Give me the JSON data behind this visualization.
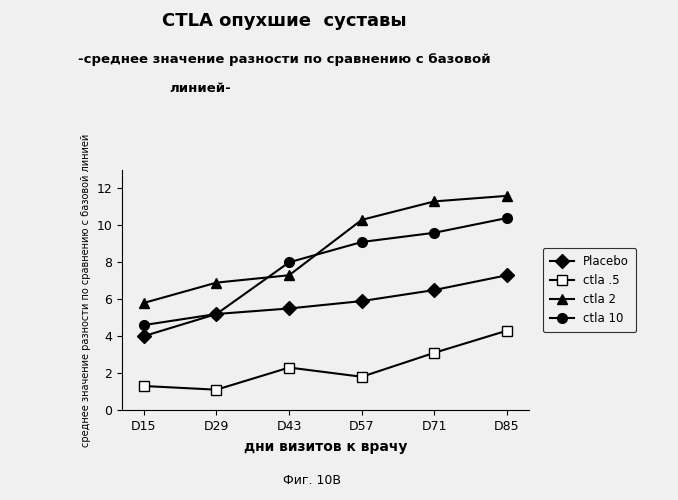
{
  "title": "CTLA опухшие  суставы",
  "subtitle1": "-среднее значение разности по сравнению с базовой",
  "subtitle2": "линией-",
  "xlabel": "дни визитов к врачу",
  "ylabel": "среднее значение разности по сравнению с базовой линией",
  "caption": "Фиг. 10В",
  "x_labels": [
    "D15",
    "D29",
    "D43",
    "D57",
    "D71",
    "D85"
  ],
  "x_values": [
    0,
    1,
    2,
    3,
    4,
    5
  ],
  "series_order": [
    "Placebo",
    "ctla .5",
    "ctla 2",
    "ctla 10"
  ],
  "series": {
    "Placebo": {
      "values": [
        4.0,
        5.2,
        5.5,
        5.9,
        6.5,
        7.3
      ],
      "marker": "D",
      "linestyle": "-",
      "markerfacecolor": "black"
    },
    "ctla .5": {
      "values": [
        1.3,
        1.1,
        2.3,
        1.8,
        3.1,
        4.3
      ],
      "marker": "s",
      "linestyle": "-",
      "markerfacecolor": "white"
    },
    "ctla 2": {
      "values": [
        5.8,
        6.9,
        7.3,
        10.3,
        11.3,
        11.6
      ],
      "marker": "^",
      "linestyle": "-",
      "markerfacecolor": "black"
    },
    "ctla 10": {
      "values": [
        4.6,
        5.2,
        8.0,
        9.1,
        9.6,
        10.4
      ],
      "marker": "o",
      "linestyle": "-",
      "markerfacecolor": "black"
    }
  },
  "ylim": [
    0,
    13
  ],
  "yticks": [
    0,
    2,
    4,
    6,
    8,
    10,
    12
  ],
  "background_color": "#f0f0f0",
  "line_color": "#000000"
}
